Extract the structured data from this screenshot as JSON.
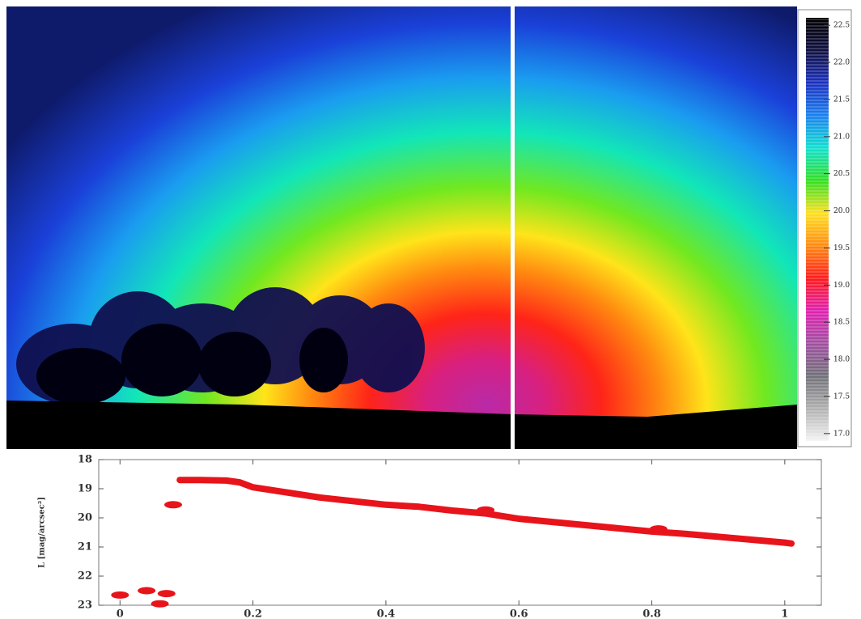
{
  "chart_data": [
    {
      "type": "colorbar",
      "ylim": [
        16.9,
        22.6
      ],
      "yticks": [
        {
          "value": 17,
          "label": "17.0"
        },
        17.5,
        {
          "value": 18,
          "label": "18.0"
        },
        18.5,
        {
          "value": 19,
          "label": "19.0"
        },
        19.5,
        {
          "value": 20,
          "label": "20.0"
        },
        20.5,
        {
          "value": 21,
          "label": "21.0"
        },
        21.5,
        {
          "value": 22,
          "label": "22.0"
        },
        22.5
      ],
      "colors": [
        "#f4f4f4",
        "#b0b0b0",
        "#707078",
        "#a050a0",
        "#e020b0",
        "#ff1a1a",
        "#ff8a10",
        "#ffe020",
        "#30e020",
        "#10e0d0",
        "#1a80f0",
        "#1a30c0",
        "#101040",
        "#000000"
      ]
    },
    {
      "type": "line",
      "ylabel": "L [mag/arcsec²]",
      "xlim": [
        -0.032,
        1.055
      ],
      "ylim": [
        23,
        18
      ],
      "xticks": [
        0,
        0.2,
        0.4,
        0.6,
        0.8,
        1
      ],
      "yticks": [
        18,
        19,
        20,
        21,
        22,
        23
      ],
      "series": [
        {
          "color": "#e8141b",
          "style": "line",
          "x": [
            0.09,
            0.12,
            0.16,
            0.18,
            0.2,
            0.3,
            0.4,
            0.45,
            0.5,
            0.55,
            0.6,
            0.7,
            0.8,
            0.85,
            0.9,
            1.0,
            1.01
          ],
          "values": [
            18.7,
            18.7,
            18.72,
            18.78,
            18.95,
            19.3,
            19.55,
            19.62,
            19.75,
            19.85,
            20.03,
            20.25,
            20.47,
            20.55,
            20.65,
            20.85,
            20.88
          ]
        },
        {
          "color": "#e8141b",
          "style": "dots",
          "x": [
            0.08,
            0.0,
            0.04,
            0.07,
            0.06,
            0.55,
            0.81
          ],
          "values": [
            19.55,
            22.65,
            22.5,
            22.6,
            22.95,
            19.73,
            20.38
          ]
        }
      ]
    }
  ]
}
